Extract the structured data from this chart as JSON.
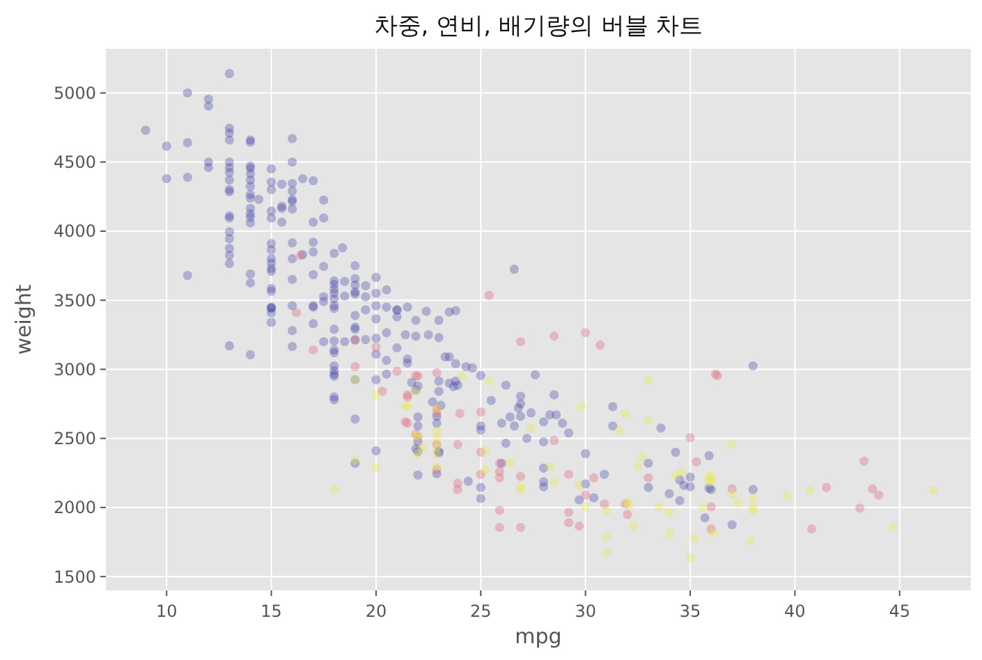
{
  "chart_data": {
    "type": "scatter",
    "title": "차중, 연비, 배기량의 버블 차트",
    "xlabel": "mpg",
    "ylabel": "weight",
    "xlim": [
      7.1,
      48.4
    ],
    "ylim": [
      1400,
      5320
    ],
    "xticks": [
      10,
      15,
      20,
      25,
      30,
      35,
      40,
      45
    ],
    "yticks": [
      1500,
      2000,
      2500,
      3000,
      3500,
      4000,
      4500,
      5000
    ],
    "grid": true,
    "marker": "circle",
    "series": [
      {
        "color": "#4848a8",
        "x": [
          9,
          10,
          10,
          11,
          11,
          11,
          11,
          12,
          12,
          12,
          12,
          13,
          13,
          13,
          13,
          13,
          13,
          13,
          13,
          13,
          13,
          13,
          13,
          13,
          13,
          13,
          13,
          13,
          14,
          14,
          14,
          14,
          14,
          14,
          14,
          14,
          14,
          14,
          14,
          14,
          14,
          14,
          14,
          14.4,
          15,
          15,
          15,
          15,
          15,
          15,
          15,
          15,
          15,
          15,
          15,
          15,
          15,
          15,
          15.5,
          15.5,
          15.5,
          15.5,
          16,
          16,
          16,
          16,
          16,
          16,
          16,
          16,
          16,
          16,
          16,
          16.5,
          16.5,
          17,
          17,
          17,
          17,
          17,
          17,
          17.5,
          17.5,
          17.5,
          18.4,
          18,
          18,
          18,
          18,
          19,
          19,
          19,
          19,
          19,
          20,
          20,
          20,
          20.5,
          21,
          21.5,
          13,
          14,
          15,
          15,
          15,
          15,
          16,
          16,
          17,
          17,
          17.5,
          17.5,
          17.5,
          18,
          18,
          18,
          18,
          18,
          18,
          18,
          18,
          18,
          18,
          18,
          18,
          18,
          18,
          18.5,
          18.5,
          18.5,
          19,
          19,
          19,
          19,
          19,
          19,
          19,
          19.5,
          19.5,
          19.5,
          19.5,
          20,
          20,
          20,
          20,
          20,
          20.5,
          20.5,
          20.5,
          20.5,
          21,
          21,
          21,
          21.5,
          21.5,
          22,
          22,
          22,
          22,
          22,
          22,
          22.5,
          23,
          23,
          23,
          23,
          23,
          23.5,
          23.5,
          23.5,
          26.6,
          21.4,
          21.9,
          22.4,
          23.8,
          21.9,
          23.3,
          23.8,
          23.8,
          24.3,
          24.6,
          21.7,
          21.9,
          25,
          25,
          25,
          25,
          25,
          24.4,
          23,
          23.7,
          23.9,
          22.7,
          23.1,
          22.9,
          22.9,
          22.9,
          21.9,
          25.5,
          26.2,
          26,
          26.2,
          26,
          26.4,
          26.6,
          26.8,
          26.9,
          26.9,
          26.9,
          27.2,
          27.4,
          27.6,
          28.5,
          28,
          28.3,
          28.6,
          28,
          28,
          28,
          28,
          28.9,
          29.2,
          29.7,
          30,
          30,
          30.9,
          30.4,
          31.3,
          31.3,
          33,
          33,
          34,
          33.6,
          34.3,
          35,
          34.5,
          35,
          34.7,
          34.5,
          35.9,
          35.9,
          35.7,
          38,
          36,
          38,
          37
        ],
        "values": [
          4730,
          4615,
          4380,
          5000,
          4640,
          4390,
          3680,
          4955,
          4905,
          4500,
          4460,
          5140,
          4745,
          4710,
          4660,
          4500,
          4460,
          4425,
          4370,
          4300,
          4285,
          4110,
          4095,
          3995,
          3945,
          3875,
          3825,
          3765,
          4660,
          4645,
          4470,
          4455,
          4415,
          4370,
          4325,
          4265,
          4240,
          4165,
          4125,
          4100,
          4060,
          3690,
          3625,
          4230,
          4450,
          4355,
          4300,
          4145,
          4095,
          3910,
          3865,
          3800,
          3770,
          3730,
          3710,
          3585,
          3450,
          3440,
          4340,
          4180,
          4165,
          4065,
          4670,
          4500,
          4345,
          4290,
          4230,
          4215,
          4160,
          3915,
          3800,
          3650,
          3460,
          3830,
          4380,
          4365,
          4065,
          3920,
          3850,
          3685,
          3460,
          4225,
          4095,
          3745,
          3880,
          3840,
          3640,
          3550,
          3440,
          3750,
          3655,
          3610,
          3560,
          3545,
          3665,
          3550,
          3460,
          3450,
          3430,
          3450,
          3170,
          3105,
          3565,
          3445,
          3410,
          3340,
          3165,
          3280,
          3450,
          3330,
          3525,
          3490,
          3200,
          3615,
          3580,
          3510,
          3460,
          3290,
          3205,
          3140,
          3120,
          3025,
          2990,
          2965,
          2950,
          2800,
          2780,
          3635,
          3530,
          3200,
          3390,
          3305,
          3290,
          3215,
          2925,
          2640,
          2320,
          3605,
          3525,
          3430,
          3215,
          3365,
          3225,
          3110,
          2925,
          2410,
          3575,
          3265,
          3065,
          2965,
          3430,
          3380,
          3155,
          3075,
          3045,
          2880,
          2655,
          2590,
          2475,
          2405,
          2235,
          3250,
          3355,
          3230,
          2840,
          2405,
          2395,
          3415,
          3090,
          2900,
          3725,
          3250,
          3355,
          3420,
          3425,
          3240,
          3090,
          3040,
          2915,
          3020,
          3010,
          2905,
          2850,
          2955,
          2590,
          2560,
          2145,
          2065,
          2190,
          2915,
          2875,
          2885,
          2765,
          2740,
          2660,
          2610,
          2245,
          2425,
          2775,
          2885,
          2610,
          2465,
          2320,
          2655,
          2590,
          2720,
          2805,
          2750,
          2660,
          2500,
          2685,
          2960,
          2815,
          2620,
          2670,
          2670,
          2475,
          2285,
          2185,
          2150,
          2610,
          2540,
          2055,
          2390,
          2170,
          2240,
          2070,
          2730,
          2590,
          2320,
          2145,
          2100,
          2575,
          2400,
          2220,
          2200,
          2150,
          2160,
          2050,
          2375,
          2140,
          1925,
          3025,
          2130,
          2130,
          1875
        ]
      },
      {
        "color": "#e0607a",
        "x": [
          16.4,
          16.2,
          17,
          19,
          19,
          20,
          20.3,
          21,
          21.5,
          21.5,
          22,
          22,
          25.4,
          21.5,
          21.4,
          21.9,
          21.9,
          22.9,
          22.9,
          22.9,
          22.9,
          22.9,
          23.9,
          23.9,
          24,
          23.9,
          25,
          25,
          25,
          25.9,
          25.9,
          25.9,
          25.9,
          25.9,
          26.9,
          26.9,
          26.9,
          28.5,
          28.5,
          29.2,
          29.2,
          29.2,
          29.7,
          30,
          30,
          30.7,
          30.9,
          30.4,
          31.9,
          32,
          33,
          35,
          35.3,
          36,
          36,
          36.2,
          36.3,
          37,
          41.5,
          43.3,
          43.7,
          44,
          43.1,
          40.8
        ],
        "values": [
          3825,
          3410,
          3140,
          3210,
          3020,
          3160,
          2840,
          2985,
          2800,
          2610,
          2950,
          2510,
          3535,
          2815,
          2620,
          2955,
          2530,
          2975,
          2715,
          2685,
          2455,
          2275,
          2175,
          2130,
          2680,
          2455,
          2690,
          2400,
          2240,
          2320,
          2260,
          2215,
          1980,
          1855,
          3200,
          2225,
          1855,
          3240,
          2485,
          2240,
          1965,
          1890,
          1865,
          3265,
          2090,
          3175,
          2025,
          2215,
          2025,
          1950,
          2215,
          2505,
          2330,
          2005,
          1845,
          2965,
          2955,
          2135,
          2145,
          2335,
          2135,
          2090,
          1995,
          1845
        ]
      },
      {
        "color": "#e8e84a",
        "x": [
          18,
          20,
          20,
          19,
          19,
          21.5,
          22,
          22,
          24.1,
          25.4,
          21.9,
          21.4,
          22.9,
          22.9,
          22.9,
          22.9,
          22.9,
          22.9,
          21.9,
          22.2,
          25.2,
          25.2,
          26.4,
          26.9,
          26.9,
          27.4,
          28.3,
          28.5,
          29.7,
          29.8,
          30,
          31,
          31,
          31,
          31.6,
          31.9,
          32,
          32.1,
          32.3,
          32.7,
          32.5,
          33,
          33,
          33.5,
          34,
          34,
          34.3,
          34.6,
          35,
          35.2,
          35.6,
          35.9,
          35.9,
          37,
          36,
          36,
          37,
          37.3,
          38,
          38,
          38,
          39.6,
          40.7,
          37.9,
          44.7,
          46.6,
          36.1
        ],
        "values": [
          2130,
          2815,
          2290,
          2925,
          2345,
          2735,
          2515,
          2390,
          2950,
          2915,
          2840,
          2735,
          2715,
          2555,
          2505,
          2440,
          2390,
          2295,
          2520,
          2430,
          2405,
          2275,
          2320,
          2150,
          2130,
          2575,
          2295,
          2185,
          2160,
          2730,
          2005,
          1975,
          1790,
          1675,
          2555,
          2680,
          2040,
          2015,
          1865,
          2365,
          2295,
          2925,
          2630,
          2005,
          1965,
          1815,
          2230,
          2260,
          1635,
          1775,
          2005,
          2225,
          2190,
          2455,
          2220,
          2185,
          2095,
          2035,
          2065,
          2000,
          1980,
          2085,
          2125,
          1755,
          1855,
          2125,
          1815
        ]
      }
    ]
  }
}
